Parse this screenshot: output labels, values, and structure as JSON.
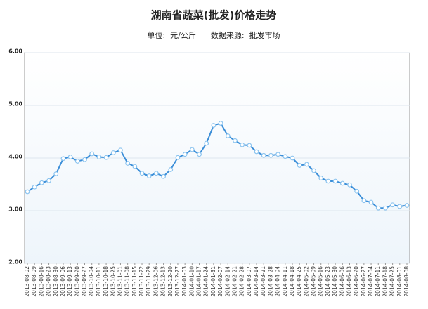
{
  "chart_data": {
    "type": "line",
    "title": "湖南省蔬菜(批发)价格走势",
    "subtitle": "单位:  元/公斤      数据来源:  批发市场",
    "categories": [
      "2013-08-02",
      "2013-08-09",
      "2013-08-16",
      "2013-08-23",
      "2013-08-30",
      "2013-09-06",
      "2013-09-13",
      "2013-09-20",
      "2013-09-27",
      "2013-10-04",
      "2013-10-11",
      "2013-10-18",
      "2013-10-25",
      "2013-11-01",
      "2013-11-08",
      "2013-11-15",
      "2013-11-22",
      "2013-11-29",
      "2013-12-06",
      "2013-12-13",
      "2013-12-20",
      "2013-12-27",
      "2014-01-03",
      "2014-01-10",
      "2014-01-17",
      "2014-01-24",
      "2014-01-31",
      "2014-02-07",
      "2014-02-14",
      "2014-02-21",
      "2014-02-28",
      "2014-03-07",
      "2014-03-14",
      "2014-03-21",
      "2014-03-28",
      "2014-04-04",
      "2014-04-11",
      "2014-04-18",
      "2014-04-25",
      "2014-05-02",
      "2014-05-09",
      "2014-05-16",
      "2014-05-23",
      "2014-05-30",
      "2014-06-06",
      "2014-06-13",
      "2014-06-20",
      "2014-06-27",
      "2014-07-04",
      "2014-07-11",
      "2014-07-18",
      "2014-07-25",
      "2014-08-01",
      "2014-08-08"
    ],
    "values": [
      3.36,
      3.45,
      3.53,
      3.57,
      3.7,
      3.99,
      4.02,
      3.94,
      3.97,
      4.08,
      4.02,
      4.01,
      4.1,
      4.15,
      3.9,
      3.84,
      3.71,
      3.66,
      3.71,
      3.65,
      3.78,
      4.01,
      4.07,
      4.16,
      4.07,
      4.28,
      4.62,
      4.66,
      4.42,
      4.33,
      4.25,
      4.24,
      4.12,
      4.05,
      4.05,
      4.07,
      4.03,
      4.0,
      3.86,
      3.88,
      3.76,
      3.62,
      3.56,
      3.56,
      3.52,
      3.49,
      3.37,
      3.19,
      3.16,
      3.05,
      3.05,
      3.11,
      3.08,
      3.1
    ],
    "color": "#3b8ed8",
    "ylim": [
      2,
      6
    ],
    "yticks": [
      {
        "value": 2,
        "label": "2.00"
      },
      {
        "value": 3,
        "label": "3.00"
      },
      {
        "value": 4,
        "label": "4.00"
      },
      {
        "value": 5,
        "label": "5.00"
      },
      {
        "value": 6,
        "label": "6.00"
      }
    ],
    "grid": true
  }
}
